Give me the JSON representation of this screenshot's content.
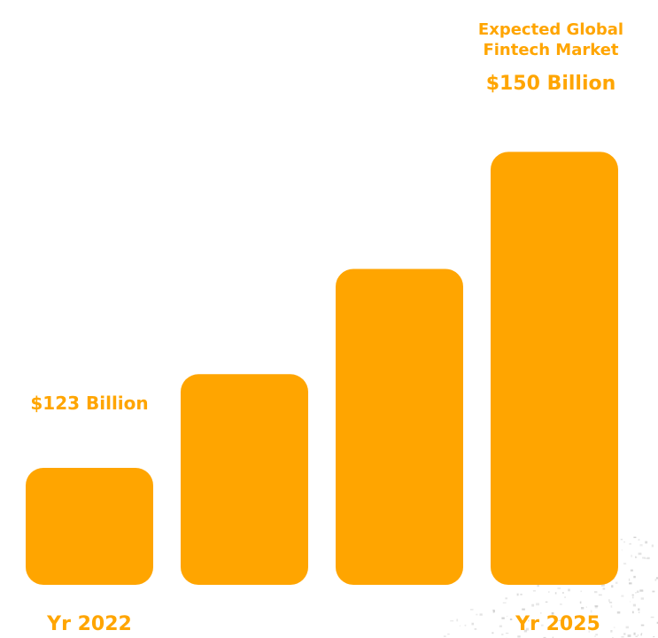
{
  "chart_data": {
    "type": "bar",
    "title": "Expected Global Fintech Market",
    "title_lines": [
      "Expected Global",
      "Fintech Market"
    ],
    "categories": [
      "Yr 2022",
      "",
      "",
      "Yr 2025"
    ],
    "values": [
      123,
      131,
      140,
      150
    ],
    "unit": "Billion",
    "currency": "$",
    "data_labels": [
      "$123 Billion",
      "",
      "",
      "$150 Billion"
    ],
    "ylim": [
      113,
      152
    ],
    "grid": false,
    "legend": "none"
  },
  "colors": {
    "bar": "#FFA500",
    "text": "#FFA500",
    "background": "#FFFFFF",
    "texture": "#BDBDBD"
  }
}
